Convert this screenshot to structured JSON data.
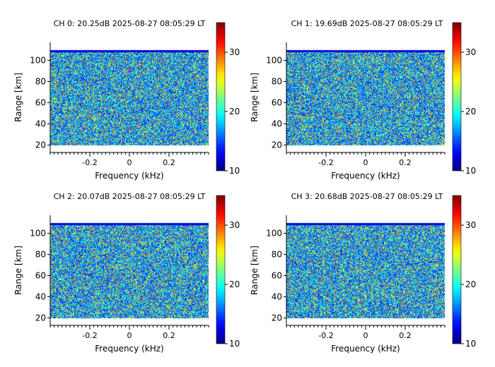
{
  "chart_data": [
    {
      "type": "heatmap",
      "title": "CH 0: 20.25dB 2025-08-27 08:05:29 LT",
      "xlabel": "Frequency (kHz)",
      "ylabel": "Range [km]",
      "xlim": [
        -0.4,
        0.4
      ],
      "ylim": [
        13,
        117
      ],
      "data_x_range": [
        -0.4,
        0.4
      ],
      "data_y_range": [
        20,
        110
      ],
      "x_ticks": [
        -0.2,
        0,
        0.2
      ],
      "x_tick_labels": [
        "-0.2",
        "0",
        "0.2"
      ],
      "y_ticks": [
        20,
        40,
        60,
        80,
        100
      ],
      "y_tick_labels": [
        "20",
        "40",
        "60",
        "80",
        "100"
      ],
      "colorbar": {
        "colormap": "jet",
        "range": [
          10,
          35
        ],
        "ticks": [
          10,
          20,
          30
        ],
        "tick_labels": [
          "10",
          "20",
          "30"
        ]
      },
      "content": "noise-like power spectrum, values mostly 10-20 with sparse higher points"
    },
    {
      "type": "heatmap",
      "title": "CH 1: 19.69dB 2025-08-27 08:05:29 LT",
      "xlabel": "Frequency (kHz)",
      "ylabel": "Range [km]",
      "xlim": [
        -0.4,
        0.4
      ],
      "ylim": [
        13,
        117
      ],
      "data_x_range": [
        -0.4,
        0.4
      ],
      "data_y_range": [
        20,
        110
      ],
      "x_ticks": [
        -0.2,
        0,
        0.2
      ],
      "x_tick_labels": [
        "-0.2",
        "0",
        "0.2"
      ],
      "y_ticks": [
        20,
        40,
        60,
        80,
        100
      ],
      "y_tick_labels": [
        "20",
        "40",
        "60",
        "80",
        "100"
      ],
      "colorbar": {
        "colormap": "jet",
        "range": [
          10,
          35
        ],
        "ticks": [
          10,
          20,
          30
        ],
        "tick_labels": [
          "10",
          "20",
          "30"
        ]
      },
      "content": "noise-like power spectrum, values mostly 10-20 with sparse higher points"
    },
    {
      "type": "heatmap",
      "title": "CH 2: 20.07dB 2025-08-27 08:05:29 LT",
      "xlabel": "Frequency (kHz)",
      "ylabel": "Range [km]",
      "xlim": [
        -0.4,
        0.4
      ],
      "ylim": [
        13,
        117
      ],
      "data_x_range": [
        -0.4,
        0.4
      ],
      "data_y_range": [
        20,
        110
      ],
      "x_ticks": [
        -0.2,
        0,
        0.2
      ],
      "x_tick_labels": [
        "-0.2",
        "0",
        "0.2"
      ],
      "y_ticks": [
        20,
        40,
        60,
        80,
        100
      ],
      "y_tick_labels": [
        "20",
        "40",
        "60",
        "80",
        "100"
      ],
      "colorbar": {
        "colormap": "jet",
        "range": [
          10,
          35
        ],
        "ticks": [
          10,
          20,
          30
        ],
        "tick_labels": [
          "10",
          "20",
          "30"
        ]
      },
      "content": "noise-like power spectrum, values mostly 10-20 with sparse higher points"
    },
    {
      "type": "heatmap",
      "title": "CH 3: 20.68dB 2025-08-27 08:05:29 LT",
      "xlabel": "Frequency (kHz)",
      "ylabel": "Range [km]",
      "xlim": [
        -0.4,
        0.4
      ],
      "ylim": [
        13,
        117
      ],
      "data_x_range": [
        -0.4,
        0.4
      ],
      "data_y_range": [
        20,
        110
      ],
      "x_ticks": [
        -0.2,
        0,
        0.2
      ],
      "x_tick_labels": [
        "-0.2",
        "0",
        "0.2"
      ],
      "y_ticks": [
        20,
        40,
        60,
        80,
        100
      ],
      "y_tick_labels": [
        "20",
        "40",
        "60",
        "80",
        "100"
      ],
      "colorbar": {
        "colormap": "jet",
        "range": [
          10,
          35
        ],
        "ticks": [
          10,
          20,
          30
        ],
        "tick_labels": [
          "10",
          "20",
          "30"
        ]
      },
      "content": "noise-like power spectrum, values mostly 10-20 with sparse higher points"
    }
  ]
}
